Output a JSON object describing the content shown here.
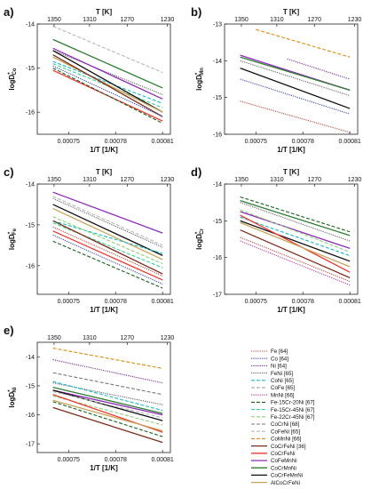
{
  "figure": {
    "legend": [
      {
        "key": "Fe",
        "label": "Fe [64]",
        "color": "#b84a3a",
        "dash": "dot"
      },
      {
        "key": "Co",
        "label": "Co [64]",
        "color": "#3b47b5",
        "dash": "dot"
      },
      {
        "key": "Ni",
        "label": "Ni [64]",
        "color": "#7a2b9e",
        "dash": "dot"
      },
      {
        "key": "FeNi",
        "label": "FeNi [65]",
        "color": "#666666",
        "dash": "dot"
      },
      {
        "key": "CoNi",
        "label": "CoNi [65]",
        "color": "#19b7c8",
        "dash": "dash"
      },
      {
        "key": "CoFe",
        "label": "CoFe [65]",
        "color": "#999999",
        "dash": "dash"
      },
      {
        "key": "MnNi",
        "label": "MnNi [66]",
        "color": "#c23aa0",
        "dash": "dot"
      },
      {
        "key": "Fe15Cr20Ni",
        "label": "Fe-15Cr-20Ni [67]",
        "color": "#1b5e20",
        "dash": "dash"
      },
      {
        "key": "Fe15Cr45Ni",
        "label": "Fe-15Cr-45Ni [67]",
        "color": "#3ad09a",
        "dash": "dash"
      },
      {
        "key": "Fe22Cr45Ni",
        "label": "Fe-22Cr-45Ni [67]",
        "color": "#8fcf7a",
        "dash": "dash"
      },
      {
        "key": "CoCrNi",
        "label": "CoCrNi [68]",
        "color": "#777777",
        "dash": "dash"
      },
      {
        "key": "CoFeNi",
        "label": "CoFeNi [65]",
        "color": "#b8b8b8",
        "dash": "dash"
      },
      {
        "key": "CoMnNi",
        "label": "CoMnNi [66]",
        "color": "#d98c10",
        "dash": "dash"
      },
      {
        "key": "CoCrFeNi",
        "label": "CoCrFeNi [36]",
        "color": "#7b2e1d",
        "dash": "solid"
      },
      {
        "key": "CoCrFeNi2",
        "label": "CoCrFeNi",
        "color": "#e63c32",
        "dash": "solid"
      },
      {
        "key": "CoFeMnNi",
        "label": "CoFeMnNi",
        "color": "#8e2ab8",
        "dash": "solid"
      },
      {
        "key": "CoCrMnNi",
        "label": "CoCrMnNi",
        "color": "#2e7d32",
        "dash": "solid"
      },
      {
        "key": "CoCrFeMnNi",
        "label": "CoCrFeMnNi",
        "color": "#111111",
        "dash": "solid"
      },
      {
        "key": "AlCoCrFeNi",
        "label": "AlCoCrFeNi",
        "color": "#c8a35a",
        "dash": "solid"
      }
    ]
  },
  "chart_data": [
    {
      "id": "a",
      "type": "line",
      "panel_label": "a)",
      "xlabel": "1/T [1/K]",
      "x2label": "T [K]",
      "ylabel_main": "logD",
      "ylabel_sub": "Co",
      "ylabel_super": "*",
      "xlim": [
        0.00073,
        0.000815
      ],
      "ylim": [
        -16.5,
        -14
      ],
      "xticks": [
        0.00075,
        0.00078,
        0.00081
      ],
      "xtick_labels": [
        "0.00075",
        "0.00078",
        "0.00081"
      ],
      "yticks": [
        -14,
        -15,
        -16
      ],
      "ytick_labels": [
        "-14",
        "-15",
        "-16"
      ],
      "x2ticks": [
        1350,
        1310,
        1270,
        1230
      ],
      "x2tick_labels": [
        "1350",
        "1310",
        "1270",
        "1230"
      ],
      "series": [
        {
          "key": "CoFeNi",
          "x": [
            0.00074,
            0.00081
          ],
          "y": [
            -14.05,
            -15.1
          ]
        },
        {
          "key": "CoCrMnNi",
          "x": [
            0.00074,
            0.00081
          ],
          "y": [
            -14.35,
            -15.45
          ]
        },
        {
          "key": "FeNi",
          "x": [
            0.00074,
            0.00081
          ],
          "y": [
            -14.6,
            -15.6
          ]
        },
        {
          "key": "CoFeMnNi",
          "x": [
            0.00074,
            0.00081
          ],
          "y": [
            -14.55,
            -15.7
          ]
        },
        {
          "key": "CoNi",
          "x": [
            0.00074,
            0.00081
          ],
          "y": [
            -14.85,
            -15.8
          ]
        },
        {
          "key": "Fe15Cr45Ni",
          "x": [
            0.00074,
            0.00081
          ],
          "y": [
            -14.9,
            -15.9
          ]
        },
        {
          "key": "CoCrFeMnNi",
          "x": [
            0.00074,
            0.00081
          ],
          "y": [
            -14.6,
            -16.0
          ]
        },
        {
          "key": "AlCoCrFeNi",
          "x": [
            0.00074,
            0.00081
          ],
          "y": [
            -14.75,
            -16.0
          ]
        },
        {
          "key": "CoCrFeNi",
          "x": [
            0.00074,
            0.00081
          ],
          "y": [
            -14.7,
            -16.1
          ]
        },
        {
          "key": "Co",
          "x": [
            0.00074,
            0.00081
          ],
          "y": [
            -14.95,
            -16.1
          ]
        },
        {
          "key": "CoCrFeNi2",
          "x": [
            0.00074,
            0.00081
          ],
          "y": [
            -15.05,
            -16.2
          ]
        },
        {
          "key": "Fe15Cr20Ni",
          "x": [
            0.00074,
            0.00081
          ],
          "y": [
            -15.0,
            -16.25
          ]
        }
      ]
    },
    {
      "id": "b",
      "type": "line",
      "panel_label": "b)",
      "xlabel": "1/T [1/K]",
      "x2label": "T [K]",
      "ylabel_main": "logD",
      "ylabel_sub": "Mn",
      "ylabel_super": "*",
      "xlim": [
        0.00073,
        0.000815
      ],
      "ylim": [
        -16,
        -13
      ],
      "xticks": [
        0.00075,
        0.00078,
        0.00081
      ],
      "xtick_labels": [
        "0.00075",
        "0.00078",
        "0.00081"
      ],
      "yticks": [
        -13,
        -14,
        -15,
        -16
      ],
      "ytick_labels": [
        "-13",
        "-14",
        "-15",
        "-16"
      ],
      "x2ticks": [
        1350,
        1310,
        1270,
        1230
      ],
      "x2tick_labels": [
        "1350",
        "1310",
        "1270",
        "1230"
      ],
      "series": [
        {
          "key": "CoMnNi",
          "x": [
            0.00075,
            0.00081
          ],
          "y": [
            -13.15,
            -13.9
          ]
        },
        {
          "key": "Ni",
          "x": [
            0.00077,
            0.00081
          ],
          "y": [
            -13.95,
            -14.5
          ]
        },
        {
          "key": "CoFeMnNi",
          "x": [
            0.00074,
            0.00081
          ],
          "y": [
            -13.85,
            -14.8
          ]
        },
        {
          "key": "CoCrMnNi",
          "x": [
            0.00074,
            0.00081
          ],
          "y": [
            -13.9,
            -14.8
          ]
        },
        {
          "key": "FeNi",
          "x": [
            0.00074,
            0.00081
          ],
          "y": [
            -14.0,
            -14.95
          ]
        },
        {
          "key": "CoCrFeMnNi",
          "x": [
            0.00074,
            0.00081
          ],
          "y": [
            -14.2,
            -15.3
          ]
        },
        {
          "key": "Co",
          "x": [
            0.00074,
            0.00081
          ],
          "y": [
            -14.5,
            -15.45
          ]
        },
        {
          "key": "Fe",
          "x": [
            0.00074,
            0.00081
          ],
          "y": [
            -15.1,
            -15.95
          ]
        }
      ]
    },
    {
      "id": "c",
      "type": "line",
      "panel_label": "c)",
      "xlabel": "1/T [1/K]",
      "x2label": "T [K]",
      "ylabel_main": "logD",
      "ylabel_sub": "Fe",
      "ylabel_super": "*",
      "xlim": [
        0.00073,
        0.000815
      ],
      "ylim": [
        -16.7,
        -14
      ],
      "xticks": [
        0.00075,
        0.00078,
        0.00081
      ],
      "xtick_labels": [
        "0.00075",
        "0.00078",
        "0.00081"
      ],
      "yticks": [
        -14,
        -15,
        -16
      ],
      "ytick_labels": [
        "-14",
        "-15",
        "-16"
      ],
      "x2ticks": [
        1350,
        1310,
        1270,
        1230
      ],
      "x2tick_labels": [
        "1350",
        "1310",
        "1270",
        "1230"
      ],
      "series": [
        {
          "key": "CoFeMnNi",
          "x": [
            0.00074,
            0.00081
          ],
          "y": [
            -14.2,
            -15.2
          ]
        },
        {
          "key": "CoFeNi",
          "x": [
            0.00074,
            0.00081
          ],
          "y": [
            -14.3,
            -15.5
          ]
        },
        {
          "key": "FeNi",
          "x": [
            0.00074,
            0.00081
          ],
          "y": [
            -14.35,
            -15.55
          ]
        },
        {
          "key": "CoCrFeMnNi",
          "x": [
            0.00074,
            0.00081
          ],
          "y": [
            -14.5,
            -15.75
          ]
        },
        {
          "key": "AlCoCrFeNi",
          "x": [
            0.00074,
            0.00081
          ],
          "y": [
            -14.6,
            -15.85
          ]
        },
        {
          "key": "CoNi",
          "x": [
            0.00074,
            0.00081
          ],
          "y": [
            -14.9,
            -15.7
          ]
        },
        {
          "key": "Fe22Cr45Ni",
          "x": [
            0.00074,
            0.00081
          ],
          "y": [
            -14.8,
            -15.95
          ]
        },
        {
          "key": "Fe15Cr45Ni",
          "x": [
            0.00074,
            0.00081
          ],
          "y": [
            -14.95,
            -16.05
          ]
        },
        {
          "key": "CoCrFeNi",
          "x": [
            0.00074,
            0.00081
          ],
          "y": [
            -14.9,
            -16.2
          ]
        },
        {
          "key": "Fe",
          "x": [
            0.00074,
            0.00081
          ],
          "y": [
            -15.05,
            -16.25
          ]
        },
        {
          "key": "CoCrFeNi2",
          "x": [
            0.00074,
            0.00081
          ],
          "y": [
            -15.15,
            -16.35
          ]
        },
        {
          "key": "Co",
          "x": [
            0.00074,
            0.00081
          ],
          "y": [
            -15.25,
            -16.45
          ]
        },
        {
          "key": "Fe15Cr20Ni",
          "x": [
            0.00074,
            0.00081
          ],
          "y": [
            -15.4,
            -16.55
          ]
        }
      ]
    },
    {
      "id": "d",
      "type": "line",
      "panel_label": "d)",
      "xlabel": "1/T [1/K]",
      "x2label": "T [K]",
      "ylabel_main": "logD",
      "ylabel_sub": "Cr",
      "ylabel_super": "*",
      "xlim": [
        0.00073,
        0.000815
      ],
      "ylim": [
        -17,
        -14
      ],
      "xticks": [
        0.00075,
        0.00078,
        0.00081
      ],
      "xtick_labels": [
        "0.00075",
        "0.00078",
        "0.00081"
      ],
      "yticks": [
        -14,
        -15,
        -16,
        -17
      ],
      "ytick_labels": [
        "-14",
        "-15",
        "-16",
        "-17"
      ],
      "x2ticks": [
        1350,
        1310,
        1270,
        1230
      ],
      "x2tick_labels": [
        "1350",
        "1310",
        "1270",
        "1230"
      ],
      "series": [
        {
          "key": "Fe15Cr20Ni",
          "x": [
            0.00074,
            0.00081
          ],
          "y": [
            -14.35,
            -15.3
          ]
        },
        {
          "key": "CoCrMnNi",
          "x": [
            0.00074,
            0.00081
          ],
          "y": [
            -14.45,
            -15.4
          ]
        },
        {
          "key": "FeNi",
          "x": [
            0.00074,
            0.00081
          ],
          "y": [
            -14.5,
            -15.55
          ]
        },
        {
          "key": "CoFeMnNi",
          "x": [
            0.00074,
            0.00081
          ],
          "y": [
            -14.75,
            -15.75
          ]
        },
        {
          "key": "Fe22Cr45Ni",
          "x": [
            0.00074,
            0.00081
          ],
          "y": [
            -14.7,
            -15.85
          ]
        },
        {
          "key": "CoNi",
          "x": [
            0.00074,
            0.00081
          ],
          "y": [
            -14.9,
            -15.95
          ]
        },
        {
          "key": "CoCrFeMnNi",
          "x": [
            0.00074,
            0.00081
          ],
          "y": [
            -15.0,
            -16.1
          ]
        },
        {
          "key": "CoCrFeNi2",
          "x": [
            0.00074,
            0.00081
          ],
          "y": [
            -14.85,
            -16.4
          ]
        },
        {
          "key": "AlCoCrFeNi",
          "x": [
            0.00074,
            0.00081
          ],
          "y": [
            -15.05,
            -16.25
          ]
        },
        {
          "key": "CoCrFeNi",
          "x": [
            0.00074,
            0.00081
          ],
          "y": [
            -15.25,
            -16.55
          ]
        },
        {
          "key": "Fe",
          "x": [
            0.00074,
            0.00081
          ],
          "y": [
            -15.45,
            -16.65
          ]
        },
        {
          "key": "MnNi",
          "x": [
            0.00074,
            0.00081
          ],
          "y": [
            -15.55,
            -16.75
          ]
        }
      ]
    },
    {
      "id": "e",
      "type": "line",
      "panel_label": "e)",
      "xlabel": "1/T [1/K]",
      "x2label": "",
      "ylabel_main": "logD",
      "ylabel_sub": "Ni",
      "ylabel_super": "*",
      "xlim": [
        0.00073,
        0.000815
      ],
      "ylim": [
        -17.3,
        -13.5
      ],
      "xticks": [
        0.00075,
        0.00078,
        0.00081
      ],
      "xtick_labels": [
        "0.00075",
        "0.00078",
        "0.00081"
      ],
      "yticks": [
        -14,
        -15,
        -16,
        -17
      ],
      "ytick_labels": [
        "-14",
        "-15",
        "-16",
        "-17"
      ],
      "x2ticks": [
        1350,
        1310,
        1270,
        1230
      ],
      "x2tick_labels": [
        "1350",
        "1310",
        "1270",
        "1230"
      ],
      "series": [
        {
          "key": "CoMnNi",
          "x": [
            0.00074,
            0.00081
          ],
          "y": [
            -13.7,
            -14.4
          ]
        },
        {
          "key": "Ni",
          "x": [
            0.00074,
            0.00081
          ],
          "y": [
            -14.1,
            -14.9
          ]
        },
        {
          "key": "CoCrNi",
          "x": [
            0.00074,
            0.00081
          ],
          "y": [
            -14.55,
            -15.3
          ]
        },
        {
          "key": "FeNi",
          "x": [
            0.00074,
            0.00081
          ],
          "y": [
            -14.9,
            -15.65
          ]
        },
        {
          "key": "CoNi",
          "x": [
            0.00074,
            0.00081
          ],
          "y": [
            -14.85,
            -15.85
          ]
        },
        {
          "key": "CoCrMnNi",
          "x": [
            0.00074,
            0.00081
          ],
          "y": [
            -15.05,
            -15.95
          ]
        },
        {
          "key": "CoFeMnNi",
          "x": [
            0.00074,
            0.00081
          ],
          "y": [
            -15.15,
            -16.0
          ]
        },
        {
          "key": "CoCrFeMnNi",
          "x": [
            0.00074,
            0.00081
          ],
          "y": [
            -15.15,
            -16.2
          ]
        },
        {
          "key": "CoFeNi",
          "x": [
            0.00074,
            0.00081
          ],
          "y": [
            -15.2,
            -16.1
          ]
        },
        {
          "key": "Fe22Cr45Ni",
          "x": [
            0.00074,
            0.00081
          ],
          "y": [
            -15.35,
            -16.35
          ]
        },
        {
          "key": "CoCrFeNi2",
          "x": [
            0.00074,
            0.00081
          ],
          "y": [
            -15.3,
            -16.6
          ]
        },
        {
          "key": "AlCoCrFeNi",
          "x": [
            0.00074,
            0.00081
          ],
          "y": [
            -15.5,
            -16.55
          ]
        },
        {
          "key": "Fe15Cr20Ni",
          "x": [
            0.00074,
            0.00081
          ],
          "y": [
            -15.55,
            -16.75
          ]
        },
        {
          "key": "CoCrFeNi",
          "x": [
            0.00074,
            0.00081
          ],
          "y": [
            -15.75,
            -16.95
          ]
        }
      ]
    }
  ]
}
